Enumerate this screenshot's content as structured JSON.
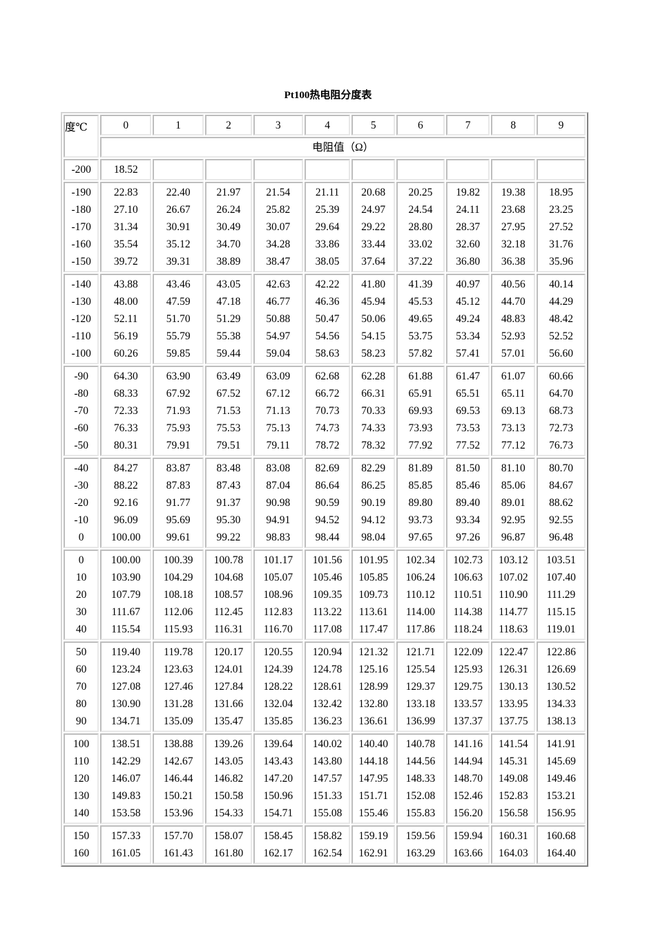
{
  "title": "Pt100热电阻分度表",
  "header": {
    "corner": "度℃",
    "columns": [
      "0",
      "1",
      "2",
      "3",
      "4",
      "5",
      "6",
      "7",
      "8",
      "9"
    ],
    "subheader": "电阻值（Ω）"
  },
  "groups": [
    {
      "temps": [
        "-200"
      ],
      "rows": [
        [
          "18.52",
          "",
          "",
          "",
          "",
          "",
          "",
          "",
          "",
          ""
        ]
      ]
    },
    {
      "temps": [
        "-190",
        "-180",
        "-170",
        "-160",
        "-150"
      ],
      "rows": [
        [
          "22.83",
          "22.40",
          "21.97",
          "21.54",
          "21.11",
          "20.68",
          "20.25",
          "19.82",
          "19.38",
          "18.95"
        ],
        [
          "27.10",
          "26.67",
          "26.24",
          "25.82",
          "25.39",
          "24.97",
          "24.54",
          "24.11",
          "23.68",
          "23.25"
        ],
        [
          "31.34",
          "30.91",
          "30.49",
          "30.07",
          "29.64",
          "29.22",
          "28.80",
          "28.37",
          "27.95",
          "27.52"
        ],
        [
          "35.54",
          "35.12",
          "34.70",
          "34.28",
          "33.86",
          "33.44",
          "33.02",
          "32.60",
          "32.18",
          "31.76"
        ],
        [
          "39.72",
          "39.31",
          "38.89",
          "38.47",
          "38.05",
          "37.64",
          "37.22",
          "36.80",
          "36.38",
          "35.96"
        ]
      ]
    },
    {
      "temps": [
        "-140",
        "-130",
        "-120",
        "-110",
        "-100"
      ],
      "rows": [
        [
          "43.88",
          "43.46",
          "43.05",
          "42.63",
          "42.22",
          "41.80",
          "41.39",
          "40.97",
          "40.56",
          "40.14"
        ],
        [
          "48.00",
          "47.59",
          "47.18",
          "46.77",
          "46.36",
          "45.94",
          "45.53",
          "45.12",
          "44.70",
          "44.29"
        ],
        [
          "52.11",
          "51.70",
          "51.29",
          "50.88",
          "50.47",
          "50.06",
          "49.65",
          "49.24",
          "48.83",
          "48.42"
        ],
        [
          "56.19",
          "55.79",
          "55.38",
          "54.97",
          "54.56",
          "54.15",
          "53.75",
          "53.34",
          "52.93",
          "52.52"
        ],
        [
          "60.26",
          "59.85",
          "59.44",
          "59.04",
          "58.63",
          "58.23",
          "57.82",
          "57.41",
          "57.01",
          "56.60"
        ]
      ]
    },
    {
      "temps": [
        "-90",
        "-80",
        "-70",
        "-60",
        "-50"
      ],
      "rows": [
        [
          "64.30",
          "63.90",
          "63.49",
          "63.09",
          "62.68",
          "62.28",
          "61.88",
          "61.47",
          "61.07",
          "60.66"
        ],
        [
          "68.33",
          "67.92",
          "67.52",
          "67.12",
          "66.72",
          "66.31",
          "65.91",
          "65.51",
          "65.11",
          "64.70"
        ],
        [
          "72.33",
          "71.93",
          "71.53",
          "71.13",
          "70.73",
          "70.33",
          "69.93",
          "69.53",
          "69.13",
          "68.73"
        ],
        [
          "76.33",
          "75.93",
          "75.53",
          "75.13",
          "74.73",
          "74.33",
          "73.93",
          "73.53",
          "73.13",
          "72.73"
        ],
        [
          "80.31",
          "79.91",
          "79.51",
          "79.11",
          "78.72",
          "78.32",
          "77.92",
          "77.52",
          "77.12",
          "76.73"
        ]
      ]
    },
    {
      "temps": [
        "-40",
        "-30",
        "-20",
        "-10",
        "0"
      ],
      "rows": [
        [
          "84.27",
          "83.87",
          "83.48",
          "83.08",
          "82.69",
          "82.29",
          "81.89",
          "81.50",
          "81.10",
          "80.70"
        ],
        [
          "88.22",
          "87.83",
          "87.43",
          "87.04",
          "86.64",
          "86.25",
          "85.85",
          "85.46",
          "85.06",
          "84.67"
        ],
        [
          "92.16",
          "91.77",
          "91.37",
          "90.98",
          "90.59",
          "90.19",
          "89.80",
          "89.40",
          "89.01",
          "88.62"
        ],
        [
          "96.09",
          "95.69",
          "95.30",
          "94.91",
          "94.52",
          "94.12",
          "93.73",
          "93.34",
          "92.95",
          "92.55"
        ],
        [
          "100.00",
          "99.61",
          "99.22",
          "98.83",
          "98.44",
          "98.04",
          "97.65",
          "97.26",
          "96.87",
          "96.48"
        ]
      ]
    },
    {
      "temps": [
        "0",
        "10",
        "20",
        "30",
        "40"
      ],
      "rows": [
        [
          "100.00",
          "100.39",
          "100.78",
          "101.17",
          "101.56",
          "101.95",
          "102.34",
          "102.73",
          "103.12",
          "103.51"
        ],
        [
          "103.90",
          "104.29",
          "104.68",
          "105.07",
          "105.46",
          "105.85",
          "106.24",
          "106.63",
          "107.02",
          "107.40"
        ],
        [
          "107.79",
          "108.18",
          "108.57",
          "108.96",
          "109.35",
          "109.73",
          "110.12",
          "110.51",
          "110.90",
          "111.29"
        ],
        [
          "111.67",
          "112.06",
          "112.45",
          "112.83",
          "113.22",
          "113.61",
          "114.00",
          "114.38",
          "114.77",
          "115.15"
        ],
        [
          "115.54",
          "115.93",
          "116.31",
          "116.70",
          "117.08",
          "117.47",
          "117.86",
          "118.24",
          "118.63",
          "119.01"
        ]
      ]
    },
    {
      "temps": [
        "50",
        "60",
        "70",
        "80",
        "90"
      ],
      "rows": [
        [
          "119.40",
          "119.78",
          "120.17",
          "120.55",
          "120.94",
          "121.32",
          "121.71",
          "122.09",
          "122.47",
          "122.86"
        ],
        [
          "123.24",
          "123.63",
          "124.01",
          "124.39",
          "124.78",
          "125.16",
          "125.54",
          "125.93",
          "126.31",
          "126.69"
        ],
        [
          "127.08",
          "127.46",
          "127.84",
          "128.22",
          "128.61",
          "128.99",
          "129.37",
          "129.75",
          "130.13",
          "130.52"
        ],
        [
          "130.90",
          "131.28",
          "131.66",
          "132.04",
          "132.42",
          "132.80",
          "133.18",
          "133.57",
          "133.95",
          "134.33"
        ],
        [
          "134.71",
          "135.09",
          "135.47",
          "135.85",
          "136.23",
          "136.61",
          "136.99",
          "137.37",
          "137.75",
          "138.13"
        ]
      ]
    },
    {
      "temps": [
        "100",
        "110",
        "120",
        "130",
        "140"
      ],
      "rows": [
        [
          "138.51",
          "138.88",
          "139.26",
          "139.64",
          "140.02",
          "140.40",
          "140.78",
          "141.16",
          "141.54",
          "141.91"
        ],
        [
          "142.29",
          "142.67",
          "143.05",
          "143.43",
          "143.80",
          "144.18",
          "144.56",
          "144.94",
          "145.31",
          "145.69"
        ],
        [
          "146.07",
          "146.44",
          "146.82",
          "147.20",
          "147.57",
          "147.95",
          "148.33",
          "148.70",
          "149.08",
          "149.46"
        ],
        [
          "149.83",
          "150.21",
          "150.58",
          "150.96",
          "151.33",
          "151.71",
          "152.08",
          "152.46",
          "152.83",
          "153.21"
        ],
        [
          "153.58",
          "153.96",
          "154.33",
          "154.71",
          "155.08",
          "155.46",
          "155.83",
          "156.20",
          "156.58",
          "156.95"
        ]
      ]
    },
    {
      "temps": [
        "150",
        "160"
      ],
      "rows": [
        [
          "157.33",
          "157.70",
          "158.07",
          "158.45",
          "158.82",
          "159.19",
          "159.56",
          "159.94",
          "160.31",
          "160.68"
        ],
        [
          "161.05",
          "161.43",
          "161.80",
          "162.17",
          "162.54",
          "162.91",
          "163.29",
          "163.66",
          "164.03",
          "164.40"
        ]
      ]
    }
  ]
}
